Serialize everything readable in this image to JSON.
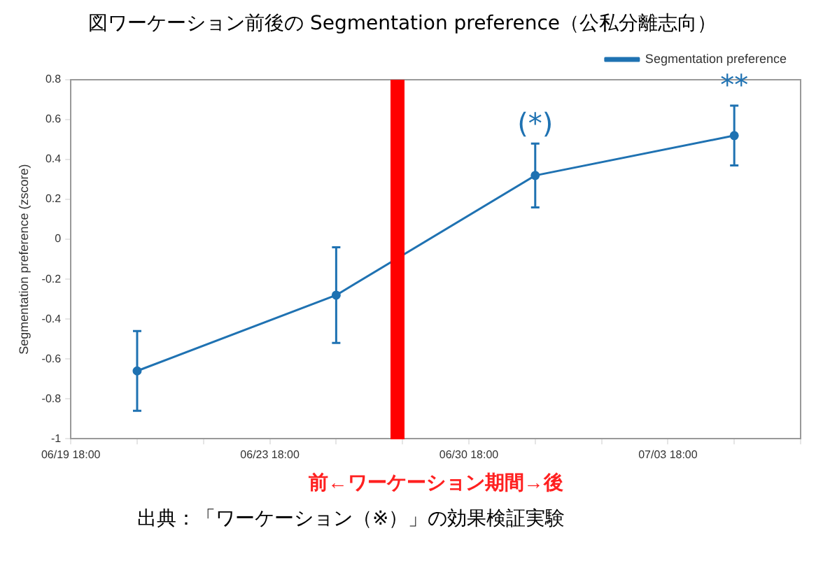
{
  "chart_data": {
    "type": "line",
    "title": "図ワーケーション前後の Segmentation preference（公私分離志向）",
    "xlabel": "前←ワーケーション期間→後",
    "ylabel": "Segmentation preference (zscore)",
    "categories": [
      "06/19 18:00",
      null,
      null,
      "06/23 18:00",
      null,
      null,
      "06/30 18:00",
      null,
      null,
      "07/03 18:00",
      null,
      null
    ],
    "series": [
      {
        "name": "Segmentation preference",
        "color": "#1f72b2",
        "values": [
          null,
          -0.66,
          null,
          null,
          -0.28,
          null,
          null,
          0.32,
          null,
          null,
          0.52,
          null
        ],
        "errors": [
          null,
          [
            -0.86,
            -0.46
          ],
          null,
          null,
          [
            -0.52,
            -0.04
          ],
          null,
          null,
          [
            0.16,
            0.48
          ],
          null,
          null,
          [
            0.37,
            0.67
          ],
          null
        ],
        "value_labels": [
          null,
          null,
          null,
          null,
          null,
          null,
          null,
          "(*)",
          null,
          null,
          "**",
          null
        ]
      }
    ],
    "ylim": [
      -1,
      0.8
    ],
    "yticks": [
      -1,
      -0.8,
      -0.6,
      -0.4,
      -0.2,
      0,
      0.2,
      0.4,
      0.6,
      0.8
    ],
    "annotations": [
      "出典：「ワーケーション（※）」の効果検証実験"
    ],
    "grid": false,
    "legend": "top right",
    "marker": "circle",
    "line_style": "solid"
  }
}
